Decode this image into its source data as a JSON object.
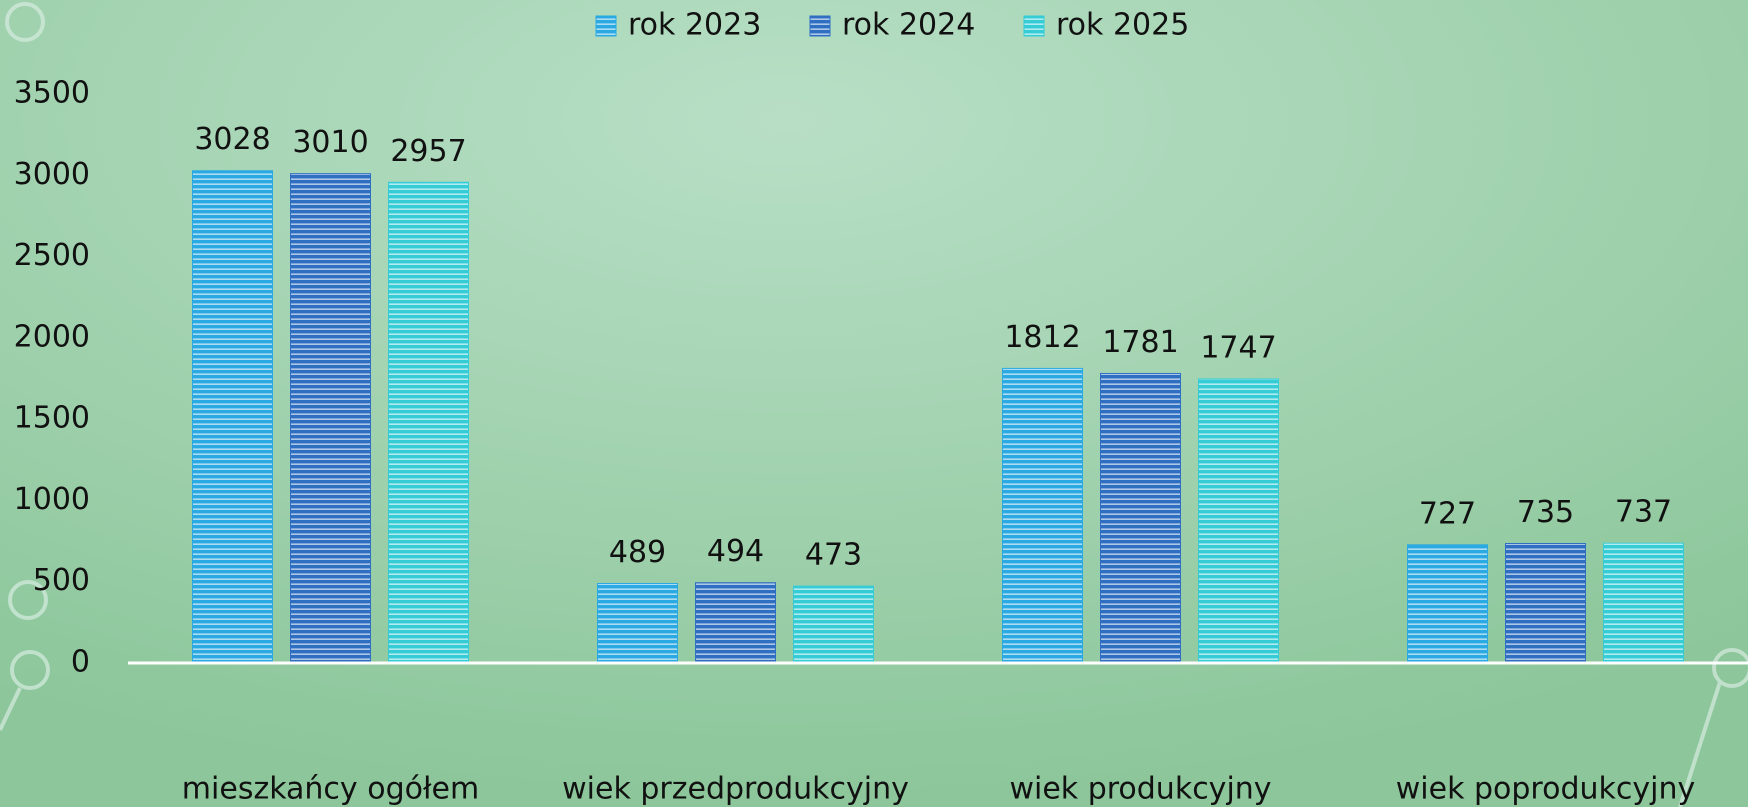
{
  "chart_data": {
    "type": "bar",
    "categories": [
      "mieszkańcy ogółem",
      "wiek przedprodukcyjny",
      "wiek produkcyjny",
      "wiek poprodukcyjny"
    ],
    "series": [
      {
        "name": "rok 2023",
        "color": "#2aa9e2",
        "values": [
          3028,
          489,
          1812,
          727
        ]
      },
      {
        "name": "rok 2024",
        "color": "#2f6fc2",
        "values": [
          3010,
          494,
          1781,
          735
        ]
      },
      {
        "name": "rok 2025",
        "color": "#35ccd6",
        "values": [
          2957,
          473,
          1747,
          737
        ]
      }
    ],
    "ylim": [
      0,
      3500
    ],
    "yticks": [
      0,
      500,
      1000,
      1500,
      2000,
      2500,
      3000,
      3500
    ],
    "grid": false,
    "legend": "top"
  }
}
